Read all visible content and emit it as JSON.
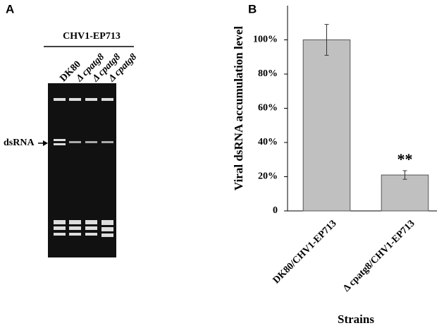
{
  "panel_labels": [
    "A",
    "B"
  ],
  "gel": {
    "title": "CHV1-EP713",
    "lanes": [
      "DK80",
      "Δ cpatg8",
      "Δ cpatg8",
      "Δ cpatg8"
    ],
    "band_label": "dsRNA"
  },
  "chart_data": {
    "type": "bar",
    "ylabel": "Viral dsRNA accumulation level",
    "xlabel": "Strains",
    "categories": [
      "DK80/CHV1-EP713",
      "Δ cpatg8/CHV1-EP713"
    ],
    "values": [
      100,
      21
    ],
    "errors": [
      9,
      2.5
    ],
    "color": "#c0c0c0",
    "annotations": [
      {
        "category": 1,
        "text": "**"
      }
    ],
    "ylim": [
      0,
      120
    ],
    "yticks": [
      0,
      {
        "value": 20,
        "label": "20%"
      },
      {
        "value": 40,
        "label": "40%"
      },
      {
        "value": 60,
        "label": "60%"
      },
      {
        "value": 80,
        "label": "80%"
      },
      {
        "value": 100,
        "label": "100%"
      }
    ],
    "grid": false
  }
}
